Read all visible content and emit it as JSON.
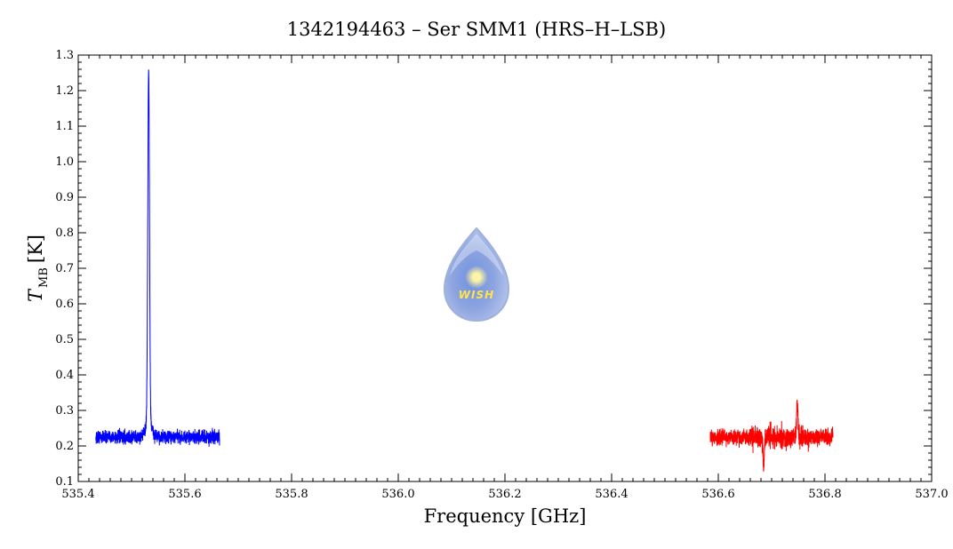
{
  "chart_data": {
    "type": "line",
    "title": "1342194463 – Ser SMM1 (HRS–H–LSB)",
    "xlabel": "Frequency [GHz]",
    "ylabel_main": "T",
    "ylabel_sub": "MB",
    "ylabel_unit": "[K]",
    "xlim": [
      535.4,
      537.0
    ],
    "ylim": [
      0.1,
      1.3
    ],
    "x_ticks": [
      "535.4",
      "535.6",
      "535.8",
      "536.0",
      "536.2",
      "536.4",
      "536.6",
      "536.8",
      "537.0"
    ],
    "y_ticks": [
      "0.1",
      "0.2",
      "0.3",
      "0.4",
      "0.5",
      "0.6",
      "0.7",
      "0.8",
      "0.9",
      "1.0",
      "1.1",
      "1.2",
      "1.3"
    ],
    "grid": false,
    "series": [
      {
        "color": "#0000ff",
        "x_range": [
          535.433,
          535.665
        ],
        "baseline": 0.225,
        "noise": 0.013,
        "peak": {
          "x": 535.532,
          "y": 1.22
        }
      },
      {
        "color": "#ff0000",
        "x_range": [
          536.585,
          536.815
        ],
        "baseline": 0.225,
        "noise": 0.015,
        "spikes": [
          {
            "x": 536.685,
            "y": 0.135
          },
          {
            "x": 536.748,
            "y": 0.325
          }
        ]
      }
    ],
    "logo": {
      "text": "WISH"
    }
  }
}
